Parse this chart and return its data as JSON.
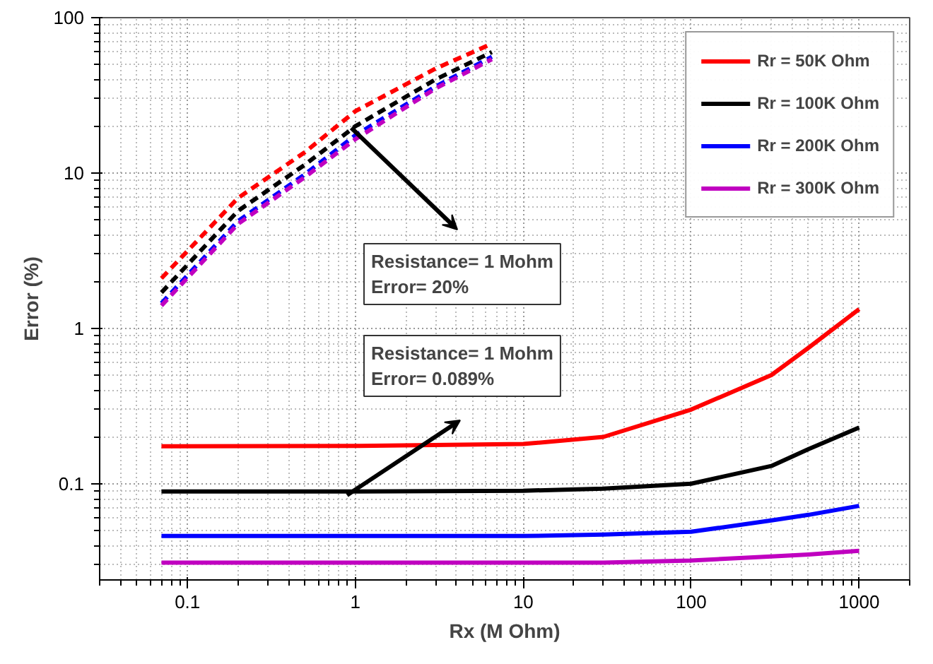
{
  "chart_data": {
    "type": "line",
    "xlabel": "Rx (M Ohm)",
    "ylabel": "Error (%)",
    "log": "xy",
    "grid": true,
    "legend": "top right",
    "xlim": [
      0.03,
      2000
    ],
    "ylim": [
      0.024,
      100
    ],
    "xticks": [
      0.1,
      1,
      10,
      100,
      1000
    ],
    "yticks": [
      0.1,
      1,
      10,
      100
    ],
    "series": [
      {
        "name": "Rr = 50K Ohm",
        "color": "#ff0000",
        "line_style": "solid",
        "x": [
          0.07,
          1,
          10,
          30,
          100,
          300,
          500,
          1000
        ],
        "values": [
          0.174,
          0.175,
          0.18,
          0.2,
          0.3,
          0.5,
          0.75,
          1.33
        ]
      },
      {
        "name": "Rr = 100K Ohm",
        "color": "#000000",
        "line_style": "solid",
        "x": [
          0.07,
          1,
          10,
          30,
          100,
          300,
          500,
          1000
        ],
        "values": [
          0.089,
          0.089,
          0.09,
          0.093,
          0.1,
          0.13,
          0.167,
          0.23
        ]
      },
      {
        "name": "Rr = 200K Ohm",
        "color": "#0000ff",
        "line_style": "solid",
        "x": [
          0.07,
          1,
          10,
          30,
          100,
          300,
          500,
          1000
        ],
        "values": [
          0.046,
          0.046,
          0.046,
          0.047,
          0.049,
          0.058,
          0.063,
          0.072
        ]
      },
      {
        "name": "Rr = 300K Ohm",
        "color": "#c000c0",
        "line_style": "solid",
        "x": [
          0.07,
          1,
          10,
          30,
          100,
          300,
          500,
          1000
        ],
        "values": [
          0.031,
          0.031,
          0.031,
          0.031,
          0.032,
          0.034,
          0.035,
          0.037
        ]
      },
      {
        "color": "#ff0000",
        "line_style": "dashed",
        "x": [
          0.07,
          0.2,
          0.5,
          1,
          3,
          6.5
        ],
        "values": [
          2.1,
          6.9,
          13.6,
          25,
          47,
          68
        ]
      },
      {
        "color": "#000000",
        "line_style": "dashed",
        "x": [
          0.07,
          0.2,
          0.5,
          1,
          3,
          6.5
        ],
        "values": [
          1.7,
          5.7,
          11.3,
          20,
          40,
          60
        ]
      },
      {
        "color": "#0000ff",
        "line_style": "dashed",
        "x": [
          0.07,
          0.2,
          0.5,
          1,
          3,
          6.5
        ],
        "values": [
          1.45,
          4.9,
          9.8,
          17.5,
          36,
          56
        ]
      },
      {
        "color": "#c000c0",
        "line_style": "dashed",
        "x": [
          0.07,
          0.2,
          0.5,
          1,
          3,
          6.5
        ],
        "values": [
          1.4,
          4.7,
          9.4,
          16.5,
          35,
          54
        ]
      }
    ],
    "annotations": [
      "Resistance= 1 Mohm\nError= 20%",
      "Resistance= 1 Mohm\nError= 0.089%"
    ]
  }
}
